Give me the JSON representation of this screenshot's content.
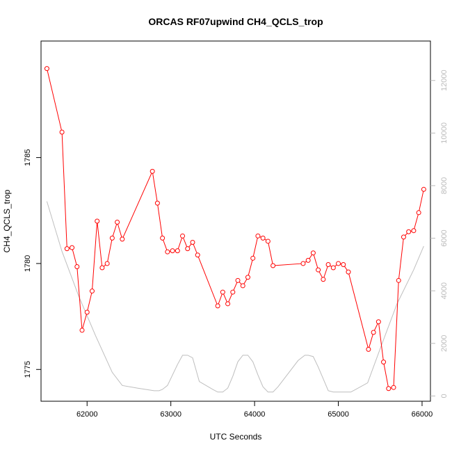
{
  "chart_data": {
    "type": "line",
    "title": "ORCAS RF07upwind CH4_QCLS_trop",
    "xlabel": "UTC Seconds",
    "ylabel": "CH4_QCLS_trop",
    "y2label": "",
    "xlim": [
      61450,
      66100
    ],
    "ylim": [
      1773.5,
      1790.5
    ],
    "y2lim": [
      -200,
      13500
    ],
    "x_ticks": [
      62000,
      63000,
      64000,
      65000,
      66000
    ],
    "y_ticks": [
      1775,
      1780,
      1785
    ],
    "y2_ticks": [
      0,
      2000,
      4000,
      6000,
      8000,
      10000,
      12000
    ],
    "colors": {
      "ch4": "#ff0000",
      "altitude": "#bebebe",
      "axis": "#000000",
      "right_axis": "#bbbbbb"
    },
    "series": [
      {
        "key": "ch4",
        "x": [
          61520,
          61700,
          61760,
          61820,
          61880,
          61940,
          62000,
          62060,
          62120,
          62180,
          62240,
          62300,
          62360,
          62420,
          62780,
          62840,
          62900,
          62960,
          63020,
          63080,
          63140,
          63200,
          63260,
          63320,
          63560,
          63620,
          63680,
          63740,
          63800,
          63860,
          63920,
          63980,
          64040,
          64100,
          64160,
          64220,
          64580,
          64640,
          64700,
          64760,
          64820,
          64880,
          64940,
          65000,
          65060,
          65120,
          65360,
          65420,
          65480,
          65540,
          65600,
          65660,
          65720,
          65780,
          65840,
          65900,
          65960,
          66020
        ],
        "values": [
          1789.2,
          1786.2,
          1780.7,
          1780.75,
          1779.85,
          1776.85,
          1777.7,
          1778.7,
          1782.0,
          1779.8,
          1780.0,
          1781.2,
          1781.95,
          1781.15,
          1784.35,
          1782.85,
          1781.2,
          1780.55,
          1780.6,
          1780.6,
          1781.3,
          1780.7,
          1781.0,
          1780.4,
          1778.0,
          1778.65,
          1778.1,
          1778.65,
          1779.2,
          1778.95,
          1779.35,
          1780.25,
          1781.3,
          1781.2,
          1781.05,
          1779.9,
          1780.0,
          1780.15,
          1780.5,
          1779.7,
          1779.25,
          1779.95,
          1779.8,
          1780.0,
          1779.95,
          1779.6,
          1775.95,
          1776.75,
          1777.25,
          1775.35,
          1774.1,
          1774.15,
          1779.2,
          1781.25,
          1781.5,
          1781.55,
          1782.4,
          1783.5
        ]
      },
      {
        "key": "altitude",
        "x": [
          61520,
          61700,
          61900,
          62100,
          62300,
          62420,
          62600,
          62800,
          62860,
          62900,
          62960,
          63020,
          63080,
          63140,
          63200,
          63260,
          63340,
          63500,
          63560,
          63620,
          63680,
          63740,
          63800,
          63860,
          63920,
          63980,
          64040,
          64100,
          64160,
          64220,
          64280,
          64400,
          64520,
          64600,
          64640,
          64700,
          64760,
          64820,
          64880,
          64940,
          65000,
          65150,
          65350,
          65500,
          65700,
          65900,
          66020
        ],
        "values": [
          7400,
          5500,
          3800,
          2300,
          900,
          400,
          300,
          200,
          200,
          250,
          400,
          800,
          1200,
          1550,
          1550,
          1450,
          550,
          250,
          150,
          150,
          300,
          750,
          1300,
          1550,
          1550,
          1300,
          800,
          350,
          150,
          150,
          350,
          850,
          1350,
          1550,
          1550,
          1500,
          1100,
          650,
          200,
          150,
          150,
          150,
          500,
          1800,
          3500,
          4800,
          5700
        ]
      }
    ]
  }
}
